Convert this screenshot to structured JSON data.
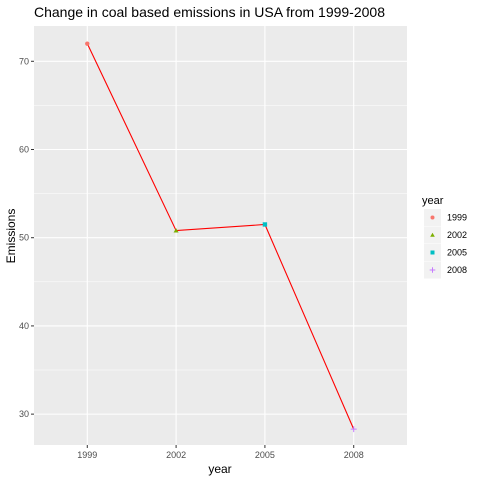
{
  "chart_data": {
    "type": "line",
    "title": "Change in coal based emissions in USA from 1999-2008",
    "xlabel": "year",
    "ylabel": "Emissions",
    "categories": [
      "1999",
      "2002",
      "2005",
      "2008"
    ],
    "values": [
      72.0,
      50.8,
      51.5,
      28.3
    ],
    "ylim": [
      26.5,
      74.0
    ],
    "yticks": [
      30,
      40,
      50,
      60,
      70
    ],
    "grid": true,
    "line_color": "#ff0000",
    "panel_background": "#ebebeb",
    "legend": {
      "title": "year",
      "placement": "right",
      "entries": [
        {
          "label": "1999",
          "color": "#f8766d",
          "shape": "circle"
        },
        {
          "label": "2002",
          "color": "#7cae00",
          "shape": "triangle"
        },
        {
          "label": "2005",
          "color": "#00bfc4",
          "shape": "square"
        },
        {
          "label": "2008",
          "color": "#c77cff",
          "shape": "plus"
        }
      ]
    }
  }
}
